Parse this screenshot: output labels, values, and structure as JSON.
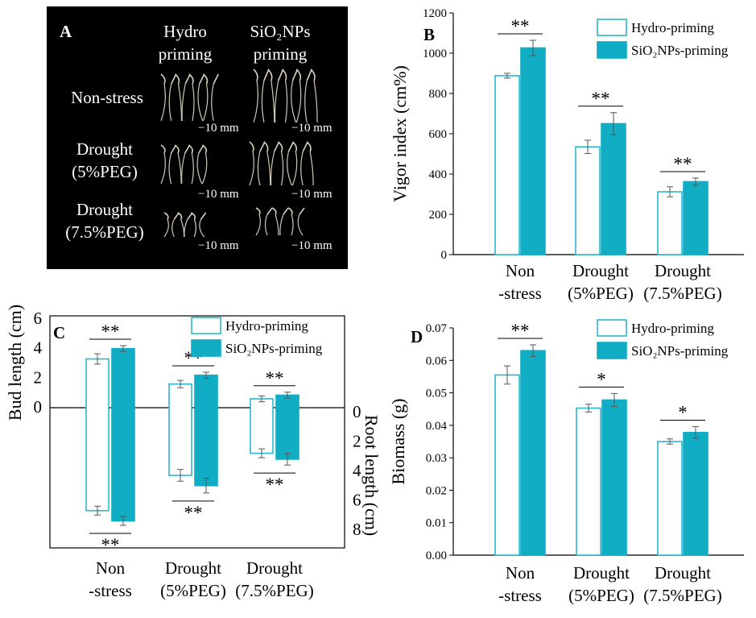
{
  "colors": {
    "hydro": "#29b7cc",
    "sio2": "#10adc4",
    "panel_a_bg": "#000000",
    "text": "#000000"
  },
  "panel_a": {
    "letter": "A",
    "column_headers": [
      [
        "Hydro",
        "priming"
      ],
      [
        "SiO₂NPs",
        "priming"
      ]
    ],
    "row_labels": [
      [
        "Non-stress"
      ],
      [
        "Drought",
        "(5%PEG)"
      ],
      [
        "Drought",
        "(7.5%PEG)"
      ]
    ],
    "scale_bar_label": "10 mm"
  },
  "chart_data": [
    {
      "panel": "B",
      "type": "bar",
      "categories": [
        [
          "Non",
          "-stress"
        ],
        [
          "Drought",
          "(5%PEG)"
        ],
        [
          "Drought",
          "(7.5%PEG)"
        ]
      ],
      "series": [
        {
          "name": "Hydro-priming",
          "values": [
            888,
            535,
            312
          ],
          "errors": [
            12,
            33,
            25
          ]
        },
        {
          "name": "SiO₂NPs-priming",
          "values": [
            1026,
            650,
            362
          ],
          "errors": [
            38,
            55,
            18
          ]
        }
      ],
      "significance": [
        "**",
        "**",
        "**"
      ],
      "ylabel": "Vigor index (cm%)",
      "ylim": [
        0,
        1200
      ],
      "yticks": [
        0,
        200,
        400,
        600,
        800,
        1000,
        1200
      ],
      "legend": "top-right"
    },
    {
      "panel": "C",
      "type": "bar",
      "categories": [
        [
          "Non",
          "-stress"
        ],
        [
          "Drought",
          "(5%PEG)"
        ],
        [
          "Drought",
          "(7.5%PEG)"
        ]
      ],
      "series": [
        {
          "name": "Hydro-priming",
          "bud": [
            3.3,
            1.6,
            0.6
          ],
          "bud_errors": [
            0.35,
            0.25,
            0.2
          ],
          "root": [
            7.0,
            4.6,
            3.1
          ],
          "root_errors": [
            0.3,
            0.4,
            0.3
          ]
        },
        {
          "name": "SiO₂NPs-priming",
          "bud": [
            4.0,
            2.2,
            0.85
          ],
          "bud_errors": [
            0.2,
            0.2,
            0.2
          ],
          "root": [
            7.7,
            5.3,
            3.5
          ],
          "root_errors": [
            0.3,
            0.5,
            0.4
          ]
        }
      ],
      "bud_significance": [
        "**",
        "**",
        "**"
      ],
      "root_significance": [
        "**",
        "**",
        "**"
      ],
      "ylabel": "Bud length (cm)",
      "y2label": "Root length (cm)",
      "bud_ticks": [
        0,
        2,
        4,
        6
      ],
      "root_ticks": [
        0,
        2,
        4,
        6,
        8
      ],
      "legend": "top-right"
    },
    {
      "panel": "D",
      "type": "bar",
      "categories": [
        [
          "Non",
          "-stress"
        ],
        [
          "Drought",
          "(5%PEG)"
        ],
        [
          "Drought",
          "(7.5%PEG)"
        ]
      ],
      "series": [
        {
          "name": "Hydro-priming",
          "values": [
            0.0555,
            0.0453,
            0.035
          ],
          "errors": [
            0.0028,
            0.0012,
            0.0008
          ]
        },
        {
          "name": "SiO₂NPs-priming",
          "values": [
            0.063,
            0.0478,
            0.0378
          ],
          "errors": [
            0.0018,
            0.002,
            0.0018
          ]
        }
      ],
      "significance": [
        "**",
        "*",
        "*"
      ],
      "ylabel": "Biomass (g)",
      "ylim": [
        0,
        0.07
      ],
      "yticks": [
        "0.00",
        "0.01",
        "0.02",
        "0.03",
        "0.04",
        "0.05",
        "0.06",
        "0.07"
      ],
      "legend": "top-right"
    }
  ]
}
